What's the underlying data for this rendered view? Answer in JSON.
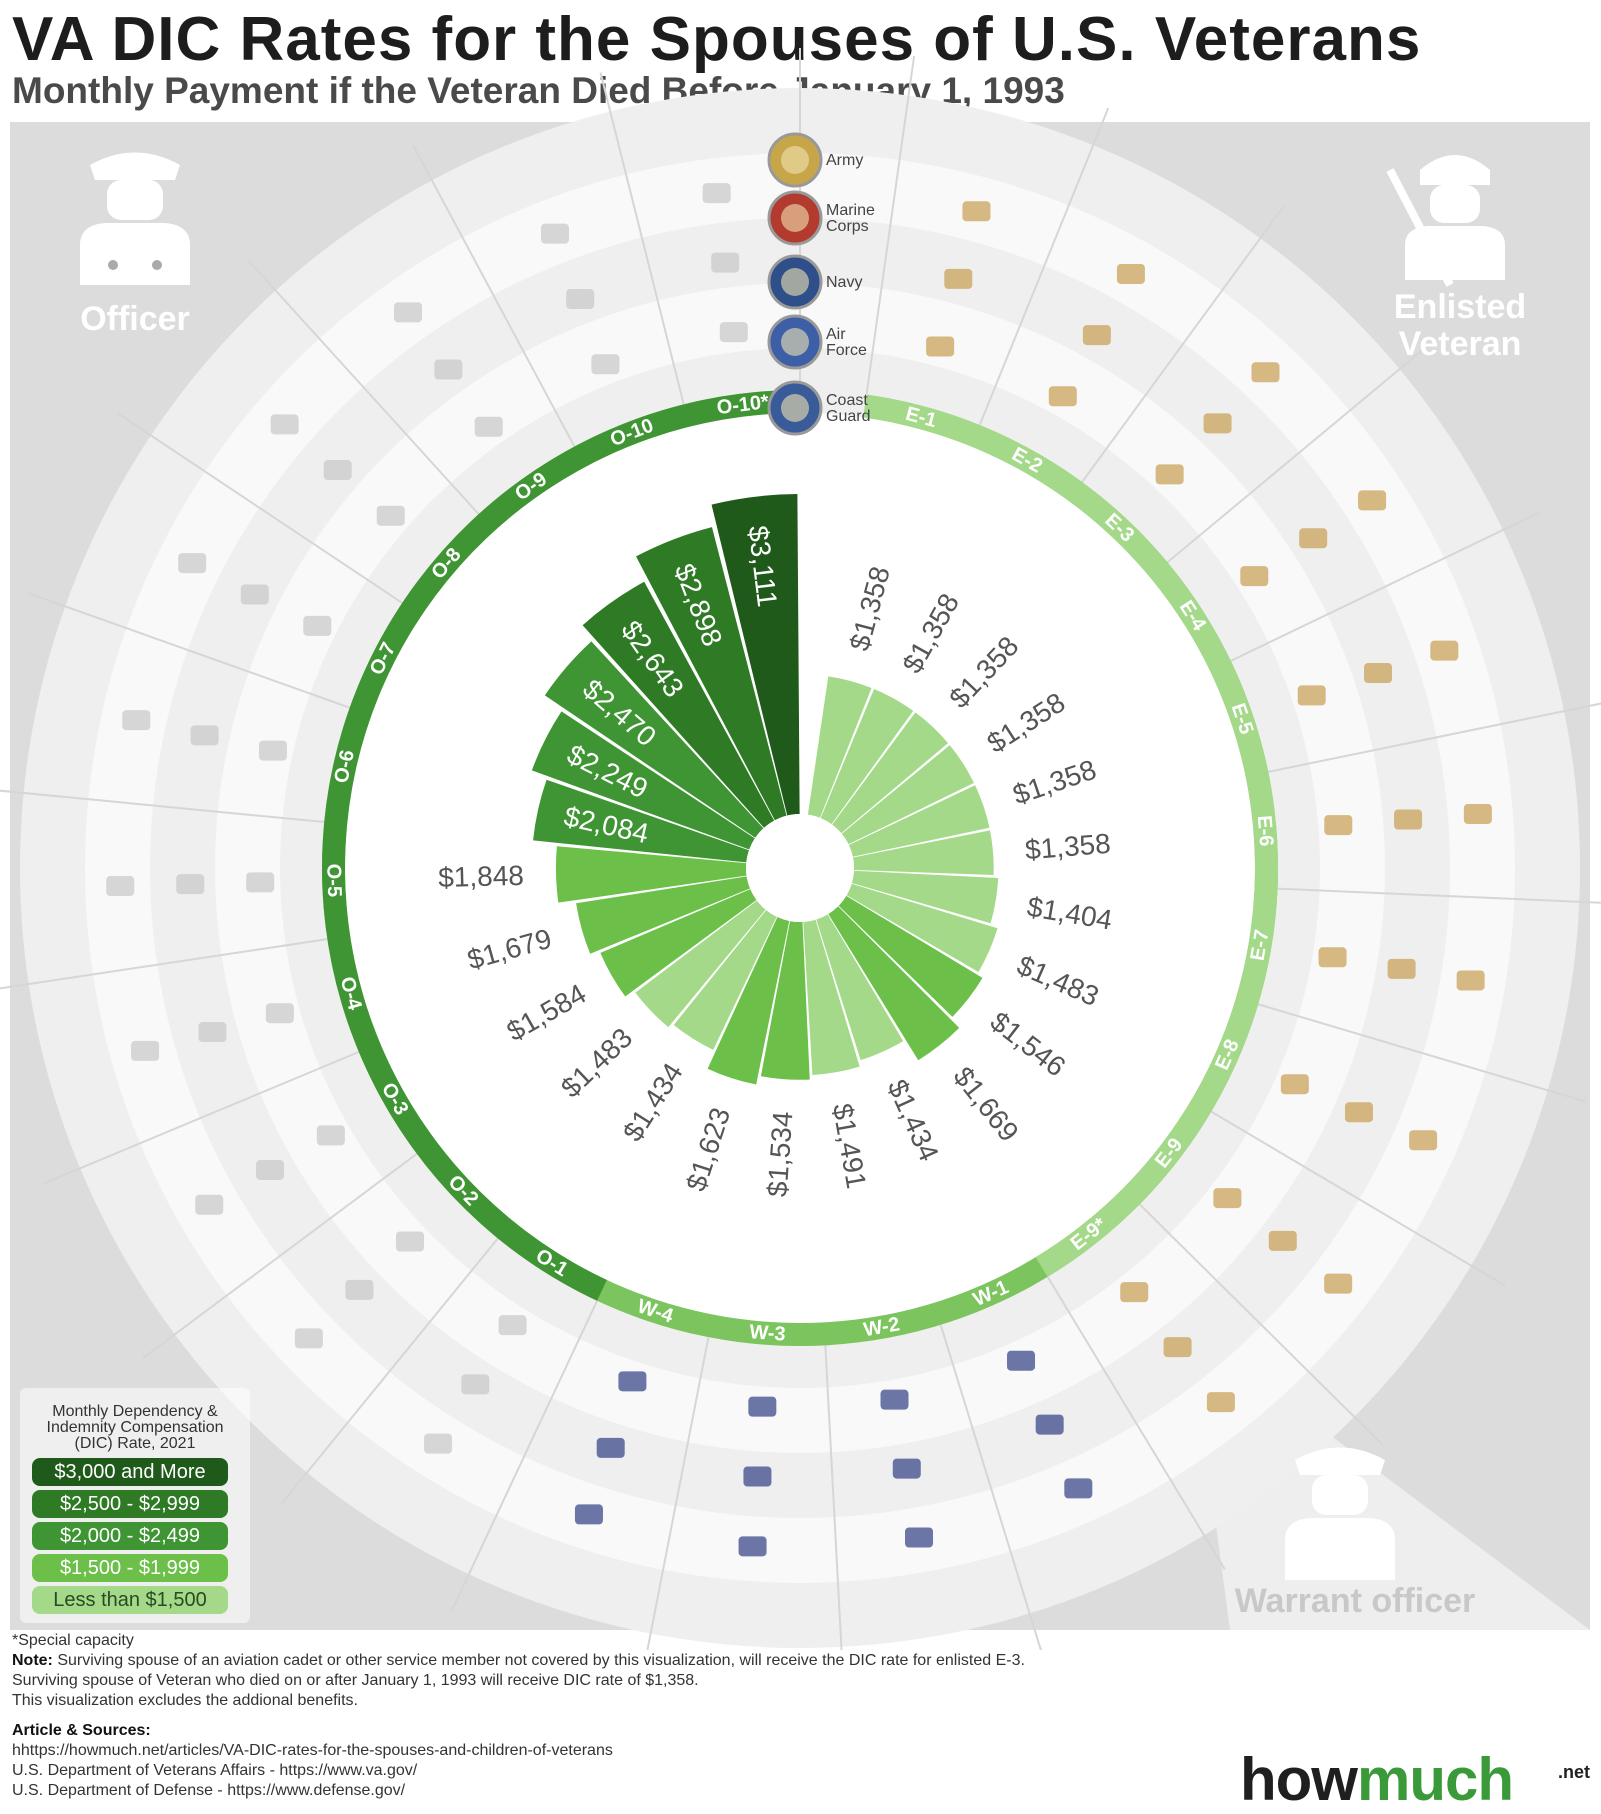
{
  "title": "VA DIC Rates for the Spouses of U.S. Veterans",
  "subtitle": "Monthly Payment if the Veteran Died Before January 1, 1993",
  "groups": {
    "officer": "Officer",
    "enlisted": "Enlisted Veteran",
    "warrant": "Warrant officer"
  },
  "branches": [
    "Army",
    "Marine Corps",
    "Navy",
    "Air Force",
    "Coast Guard"
  ],
  "legend": {
    "title": "Monthly Dependency & Indemnity Compensation (DIC) Rate, 2021",
    "items": [
      {
        "label": "$3,000 and More",
        "color": "#1f5a1a"
      },
      {
        "label": "$2,500 - $2,999",
        "color": "#2e7a25"
      },
      {
        "label": "$2,000 - $2,499",
        "color": "#3f9534"
      },
      {
        "label": "$1,500 - $1,999",
        "color": "#6cc04a"
      },
      {
        "label": "Less than $1,500",
        "color": "#a4d98a"
      }
    ]
  },
  "chart_data": {
    "type": "bar",
    "layout": "radial",
    "categories": [
      "E-1",
      "E-2",
      "E-3",
      "E-4",
      "E-5",
      "E-6",
      "E-7",
      "E-8",
      "E-9",
      "E-9*",
      "W-1",
      "W-2",
      "W-3",
      "W-4",
      "O-1",
      "O-2",
      "O-3",
      "O-4",
      "O-5",
      "O-6",
      "O-7",
      "O-8",
      "O-9",
      "O-10",
      "O-10*"
    ],
    "values": [
      1358,
      1358,
      1358,
      1358,
      1358,
      1358,
      1404,
      1483,
      1546,
      1669,
      1434,
      1491,
      1534,
      1623,
      1434,
      1483,
      1584,
      1679,
      1848,
      2084,
      2249,
      2470,
      2643,
      2898,
      3111
    ],
    "value_labels": [
      "$1,358",
      "$1,358",
      "$1,358",
      "$1,358",
      "$1,358",
      "$1,358",
      "$1,404",
      "$1,483",
      "$1,546",
      "$1,669",
      "$1,434",
      "$1,491",
      "$1,534",
      "$1,623",
      "$1,434",
      "$1,483",
      "$1,584",
      "$1,679",
      "$1,848",
      "$2,084",
      "$2,249",
      "$2,470",
      "$2,643",
      "$2,898",
      "$3,111"
    ],
    "unit": "USD per month"
  },
  "footnotes": {
    "special": "*Special capacity",
    "note_label": "Note:",
    "note_1": " Surviving spouse of an aviation cadet or other service member not covered by this visualization, will receive the DIC rate for enlisted E-3.",
    "note_2": "Surviving spouse of Veteran who died on or after January 1, 1993 will receive DIC rate of $1,358.",
    "note_3": "This visualization excludes the addional benefits.",
    "sources_label": "Article & Sources:",
    "source_1": "hhttps://howmuch.net/articles/VA-DIC-rates-for-the-spouses-and-children-of-veterans",
    "source_2": "U.S. Department of Veterans Affairs - https://www.va.gov/",
    "source_3": "U.S. Department of Defense - https://www.defense.gov/"
  },
  "brand": {
    "how": "how",
    "much": "much",
    "net": ".net"
  }
}
